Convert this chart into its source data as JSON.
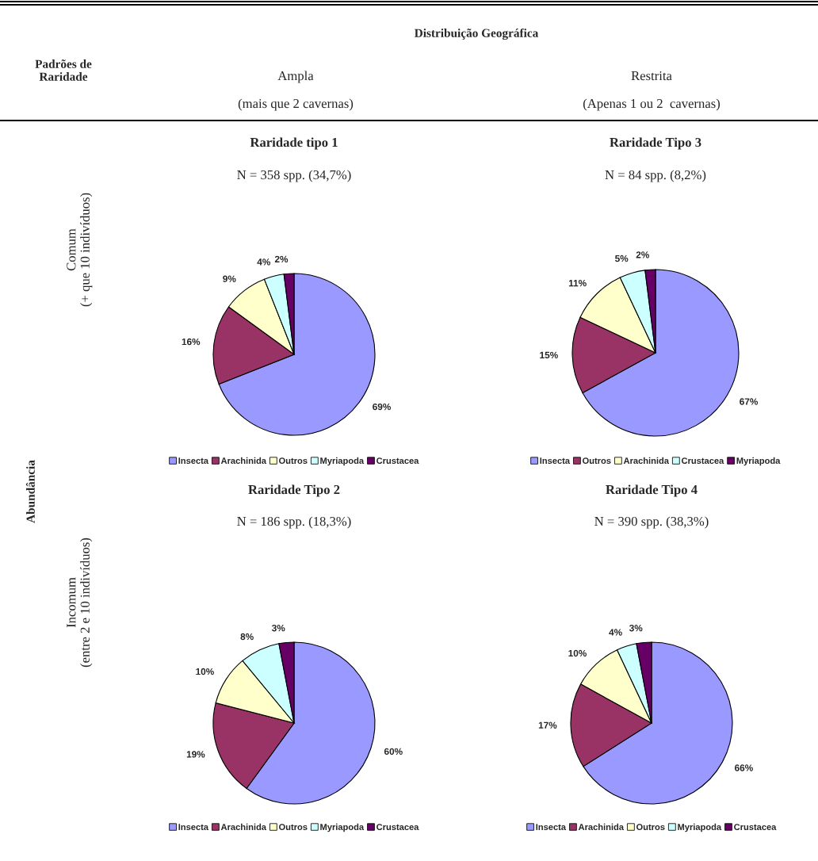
{
  "chart_data": [
    {
      "type": "other",
      "annotations": [
        "Distribuição Geográfica",
        "Padrões de\nRaridade",
        "Ampla",
        "(mais que 2 cavernas)",
        "Restrita",
        "(Apenas 1 ou 2  cavernas)",
        "Abundância",
        "Comum\n(+ que 10 indivíduos)",
        "Incomum\n(entre 2 e 10 indivíduos)"
      ]
    },
    {
      "type": "pie",
      "title": "Raridade tipo 1",
      "subtitle": "N = 358 spp. (34,7%)",
      "categories": [
        "Insecta",
        "Arachinida",
        "Outros",
        "Myriapoda",
        "Crustacea"
      ],
      "values": [
        69,
        16,
        9,
        4,
        2
      ],
      "value_labels": [
        "69%",
        "16%",
        "9%",
        "4%",
        "2%"
      ],
      "colors": [
        "#9999ff",
        "#993366",
        "#ffffcc",
        "#ccffff",
        "#660066"
      ],
      "legend": "bottom"
    },
    {
      "type": "pie",
      "title": "Raridade Tipo 3",
      "subtitle": "N = 84 spp. (8,2%)",
      "categories": [
        "Insecta",
        "Outros",
        "Arachinida",
        "Crustacea",
        "Myriapoda"
      ],
      "values": [
        67,
        15,
        11,
        5,
        2
      ],
      "value_labels": [
        "67%",
        "15%",
        "11%",
        "5%",
        "2%"
      ],
      "colors": [
        "#9999ff",
        "#993366",
        "#ffffcc",
        "#ccffff",
        "#660066"
      ],
      "legend": "bottom"
    },
    {
      "type": "pie",
      "title": "Raridade Tipo 2",
      "subtitle": "N = 186 spp. (18,3%)",
      "categories": [
        "Insecta",
        "Arachinida",
        "Outros",
        "Myriapoda",
        "Crustacea"
      ],
      "values": [
        60,
        19,
        10,
        8,
        3
      ],
      "value_labels": [
        "60%",
        "19%",
        "10%",
        "8%",
        "3%"
      ],
      "colors": [
        "#9999ff",
        "#993366",
        "#ffffcc",
        "#ccffff",
        "#660066"
      ],
      "legend": "bottom"
    },
    {
      "type": "pie",
      "title": "Raridade Tipo 4",
      "subtitle": "N = 390 spp. (38,3%)",
      "categories": [
        "Insecta",
        "Arachinida",
        "Outros",
        "Myriapoda",
        "Crustacea"
      ],
      "values": [
        66,
        17,
        10,
        4,
        3
      ],
      "value_labels": [
        "66%",
        "17%",
        "10%",
        "4%",
        "3%"
      ],
      "colors": [
        "#9999ff",
        "#993366",
        "#ffffcc",
        "#ccffff",
        "#660066"
      ],
      "legend": "bottom"
    }
  ]
}
